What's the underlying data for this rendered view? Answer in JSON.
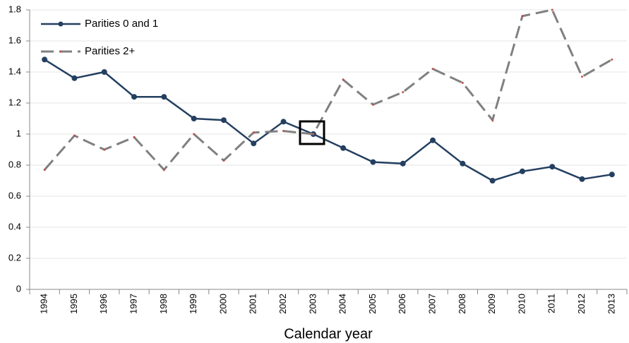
{
  "chart_data": {
    "type": "line",
    "x_label": "Calendar year",
    "categories": [
      "1994",
      "1995",
      "1996",
      "1997",
      "1998",
      "1999",
      "2000",
      "2001",
      "2002",
      "2003",
      "2004",
      "2005",
      "2006",
      "2007",
      "2008",
      "2009",
      "2010",
      "2011",
      "2012",
      "2013"
    ],
    "series": [
      {
        "name": "Parities 0 and 1",
        "color": "#243f60",
        "marker_color": "#243f60",
        "dashed": false,
        "values": [
          1.48,
          1.36,
          1.4,
          1.24,
          1.24,
          1.1,
          1.09,
          0.94,
          1.08,
          1.0,
          0.91,
          0.82,
          0.81,
          0.96,
          0.81,
          0.7,
          0.76,
          0.79,
          0.71,
          0.74
        ]
      },
      {
        "name": "Parities 2+",
        "color": "#808080",
        "marker_color": "#c0504d",
        "dashed": true,
        "values": [
          0.77,
          0.99,
          0.9,
          0.98,
          0.77,
          1.0,
          0.83,
          1.01,
          1.02,
          1.0,
          1.35,
          1.19,
          1.27,
          1.42,
          1.33,
          1.09,
          1.76,
          1.8,
          1.37,
          1.48
        ]
      }
    ],
    "ylim": [
      0,
      1.8
    ],
    "yticks": [
      0,
      0.2,
      0.4,
      0.6,
      0.8,
      1,
      1.2,
      1.4,
      1.6,
      1.8
    ],
    "grid": true,
    "legend": "top-left"
  }
}
